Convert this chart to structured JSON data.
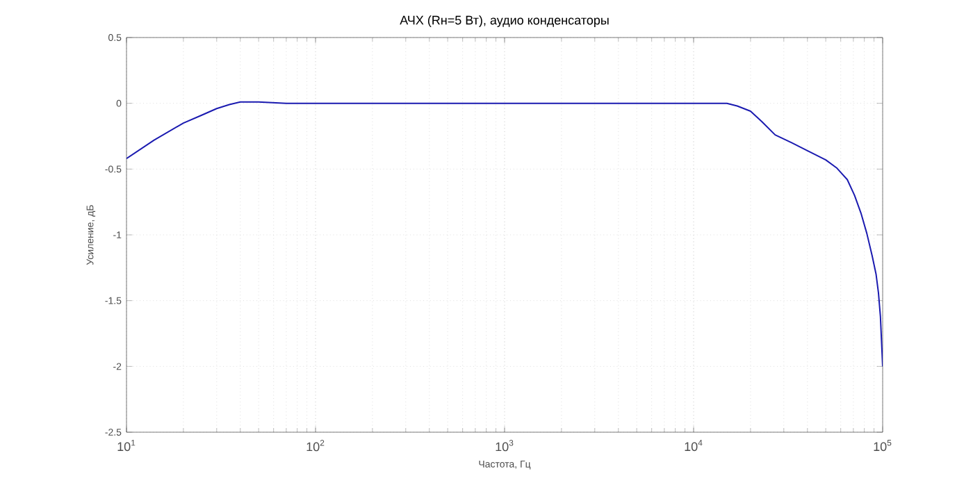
{
  "chart_data": {
    "type": "line",
    "title": "АЧХ (Rн=5 Вт), аудио конденсаторы",
    "xlabel": "Частота, Гц",
    "ylabel": "Усиление, дБ",
    "log": "x",
    "grid": true,
    "marker": "none",
    "line_style": "solid",
    "xlim": [
      10,
      100000
    ],
    "ylim": [
      -2.5,
      0.5
    ],
    "xticks": [
      {
        "value": 10,
        "label": "10$^{1}$"
      },
      {
        "value": 100,
        "label": "10$^{2}$"
      },
      {
        "value": 1000,
        "label": "10$^{3}$"
      },
      {
        "value": 10000,
        "label": "10$^{4}$"
      },
      {
        "value": 100000,
        "label": "10$^{5}$"
      }
    ],
    "yticks": [
      -2.5,
      -2,
      -1.5,
      -1,
      -0.5,
      0,
      0.5
    ],
    "x": [
      10,
      14,
      20,
      25,
      30,
      35,
      40,
      50,
      70,
      100,
      200,
      500,
      1000,
      2000,
      5000,
      10000,
      15000,
      17000,
      20000,
      23000,
      27000,
      33000,
      40000,
      50000,
      57000,
      65000,
      71000,
      77000,
      82500,
      88000,
      92300,
      95000,
      97300,
      100000
    ],
    "series": [
      {
        "color": "#1a1ab0",
        "values": [
          -0.42,
          -0.28,
          -0.15,
          -0.09,
          -0.04,
          -0.01,
          0.01,
          0.01,
          0,
          0,
          0,
          0,
          0,
          0,
          0,
          0,
          0,
          -0.02,
          -0.06,
          -0.14,
          -0.24,
          -0.3,
          -0.36,
          -0.43,
          -0.49,
          -0.58,
          -0.7,
          -0.84,
          -0.99,
          -1.16,
          -1.3,
          -1.44,
          -1.62,
          -2.0
        ]
      }
    ]
  }
}
